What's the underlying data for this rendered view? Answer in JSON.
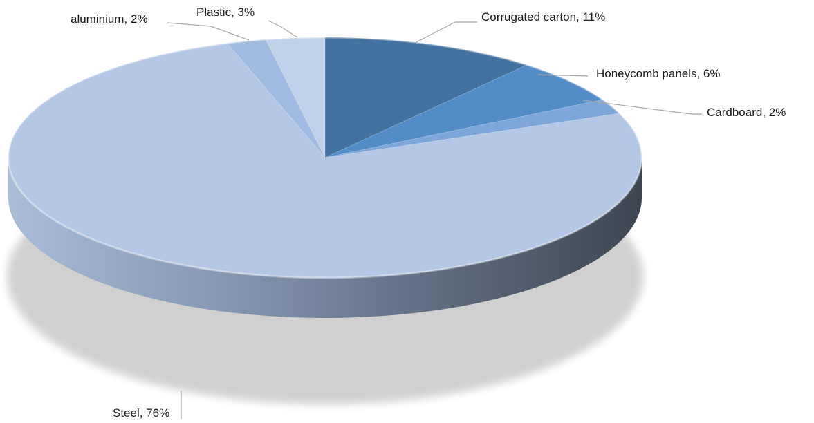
{
  "chart_data": {
    "type": "pie",
    "style": "3d",
    "title": "",
    "slices": [
      {
        "label": "Corrugated carton",
        "value": 11,
        "display": "Corrugated carton, 11%",
        "color": "#4472a0"
      },
      {
        "label": "Honeycomb panels",
        "value": 6,
        "display": "Honeycomb panels, 6%",
        "color": "#538cc6"
      },
      {
        "label": "Cardboard",
        "value": 2,
        "display": "Cardboard, 2%",
        "color": "#7ea6d8"
      },
      {
        "label": "Steel",
        "value": 76,
        "display": "Steel, 76%",
        "color": "#b4c8e6"
      },
      {
        "label": "aluminium",
        "value": 2,
        "display": "aluminium, 2%",
        "color": "#9fbce0"
      },
      {
        "label": "Plastic",
        "value": 3,
        "display": "Plastic, 3%",
        "color": "#c0d2e8"
      }
    ],
    "legend": "none",
    "data_labels": "outside with leader lines"
  }
}
